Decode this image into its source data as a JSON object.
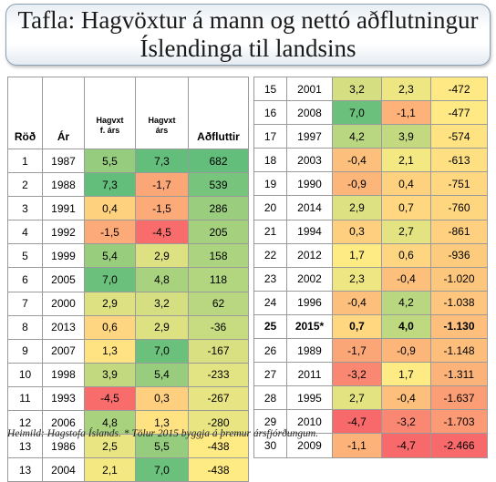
{
  "title": {
    "line1": "Tafla: Hagvöxtur á mann og nettó aðflutningur",
    "line2": "Íslendinga til landsins"
  },
  "table_headers": {
    "rank": "Röð",
    "year": "Ár",
    "growth_prev_line1": "Hagvxt",
    "growth_prev_line2": "f. árs",
    "growth_line1": "Hagvxt",
    "growth_line2": "árs",
    "net_migration": "Aðfluttir"
  },
  "rows_left": [
    {
      "rank": "1",
      "year": "1987",
      "growth_prev": "5,5",
      "growth": "7,3",
      "net": "682"
    },
    {
      "rank": "2",
      "year": "1988",
      "growth_prev": "7,3",
      "growth": "-1,7",
      "net": "539"
    },
    {
      "rank": "3",
      "year": "1991",
      "growth_prev": "0,4",
      "growth": "-1,5",
      "net": "286"
    },
    {
      "rank": "4",
      "year": "1992",
      "growth_prev": "-1,5",
      "growth": "-4,5",
      "net": "205"
    },
    {
      "rank": "5",
      "year": "1999",
      "growth_prev": "5,4",
      "growth": "2,9",
      "net": "158"
    },
    {
      "rank": "6",
      "year": "2005",
      "growth_prev": "7,0",
      "growth": "4,8",
      "net": "118"
    },
    {
      "rank": "7",
      "year": "2000",
      "growth_prev": "2,9",
      "growth": "3,2",
      "net": "62"
    },
    {
      "rank": "8",
      "year": "2013",
      "growth_prev": "0,6",
      "growth": "2,9",
      "net": "-36"
    },
    {
      "rank": "9",
      "year": "2007",
      "growth_prev": "1,3",
      "growth": "7,0",
      "net": "-167"
    },
    {
      "rank": "10",
      "year": "1998",
      "growth_prev": "3,9",
      "growth": "5,4",
      "net": "-233"
    },
    {
      "rank": "11",
      "year": "1993",
      "growth_prev": "-4,5",
      "growth": "0,3",
      "net": "-267"
    },
    {
      "rank": "12",
      "year": "2006",
      "growth_prev": "4,8",
      "growth": "1,3",
      "net": "-280"
    },
    {
      "rank": "13",
      "year": "1986",
      "growth_prev": "2,5",
      "growth": "5,5",
      "net": "-438"
    },
    {
      "rank": "13",
      "year": "2004",
      "growth_prev": "2,1",
      "growth": "7,0",
      "net": "-438"
    }
  ],
  "rows_right": [
    {
      "rank": "15",
      "year": "2001",
      "growth_prev": "3,2",
      "growth": "2,3",
      "net": "-472"
    },
    {
      "rank": "16",
      "year": "2008",
      "growth_prev": "7,0",
      "growth": "-1,1",
      "net": "-477"
    },
    {
      "rank": "17",
      "year": "1997",
      "growth_prev": "4,2",
      "growth": "3,9",
      "net": "-574"
    },
    {
      "rank": "18",
      "year": "2003",
      "growth_prev": "-0,4",
      "growth": "2,1",
      "net": "-613"
    },
    {
      "rank": "19",
      "year": "1990",
      "growth_prev": "-0,9",
      "growth": "0,4",
      "net": "-751"
    },
    {
      "rank": "20",
      "year": "2014",
      "growth_prev": "2,9",
      "growth": "0,7",
      "net": "-760"
    },
    {
      "rank": "21",
      "year": "1994",
      "growth_prev": "0,3",
      "growth": "2,7",
      "net": "-861"
    },
    {
      "rank": "22",
      "year": "2012",
      "growth_prev": "1,7",
      "growth": "0,6",
      "net": "-936"
    },
    {
      "rank": "23",
      "year": "2002",
      "growth_prev": "2,3",
      "growth": "-0,4",
      "net": "-1.020"
    },
    {
      "rank": "24",
      "year": "1996",
      "growth_prev": "-0,4",
      "growth": "4,2",
      "net": "-1.038"
    },
    {
      "rank": "25",
      "year": "2015*",
      "growth_prev": "0,7",
      "growth": "4,0",
      "net": "-1.130",
      "bold": true
    },
    {
      "rank": "26",
      "year": "1989",
      "growth_prev": "-1,7",
      "growth": "-0,9",
      "net": "-1.148"
    },
    {
      "rank": "27",
      "year": "2011",
      "growth_prev": "-3,2",
      "growth": "1,7",
      "net": "-1.311"
    },
    {
      "rank": "28",
      "year": "1995",
      "growth_prev": "2,7",
      "growth": "-0,4",
      "net": "-1.637"
    },
    {
      "rank": "29",
      "year": "2010",
      "growth_prev": "-4,7",
      "growth": "-3,2",
      "net": "-1.703"
    },
    {
      "rank": "30",
      "year": "2009",
      "growth_prev": "-1,1",
      "growth": "-4,7",
      "net": "-2.466"
    }
  ],
  "color_scale": {
    "low": "#f8696b",
    "mid": "#ffeb84",
    "high": "#63be7b",
    "growth_min": -4.7,
    "growth_mid": 1.7,
    "growth_max": 7.3,
    "net_min": -2466,
    "net_mid": -438,
    "net_max": 682
  },
  "source": "Heimild: Hagstofa Íslands. * Tölur 2015 byggja á þremur ársfjórðungum."
}
